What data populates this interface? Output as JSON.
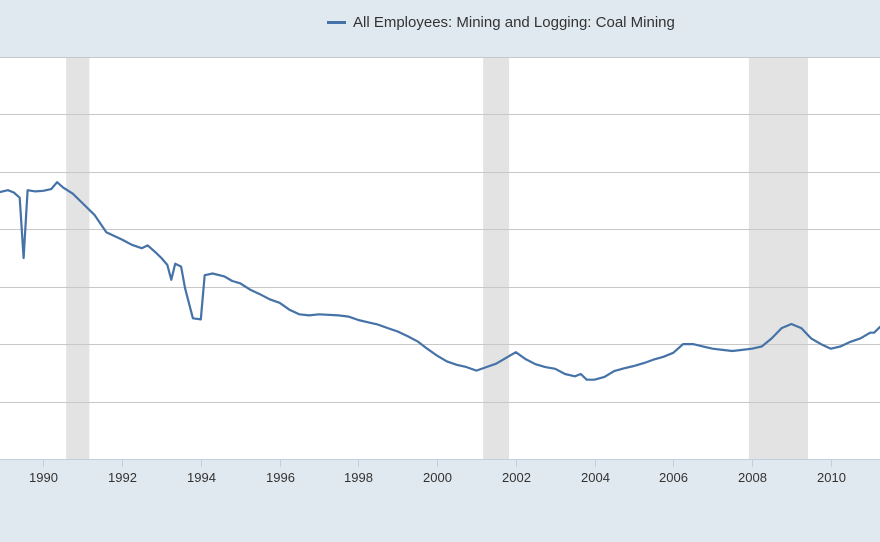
{
  "chart_data": {
    "type": "line",
    "title": "",
    "xlabel": "",
    "ylabel": "",
    "grid": true,
    "legend_position": "top",
    "colors": {
      "line": "#4572a7",
      "background": "#e1e9f0",
      "plot_background": "#ffffff",
      "recession": "#e3e3e3",
      "grid": "#c8c8c8"
    },
    "xlim": [
      1988.9,
      2011.25
    ],
    "ylim": [
      0,
      7
    ],
    "y_gridlines": [
      1,
      2,
      3,
      4,
      5,
      6,
      7
    ],
    "x_ticks": [
      {
        "value": 1990,
        "label": "1990"
      },
      {
        "value": 1992,
        "label": "1992"
      },
      {
        "value": 1994,
        "label": "1994"
      },
      {
        "value": 1996,
        "label": "1996"
      },
      {
        "value": 1998,
        "label": "1998"
      },
      {
        "value": 2000,
        "label": "2000"
      },
      {
        "value": 2002,
        "label": "2002"
      },
      {
        "value": 2004,
        "label": "2004"
      },
      {
        "value": 2006,
        "label": "2006"
      },
      {
        "value": 2008,
        "label": "2008"
      },
      {
        "value": 2010,
        "label": "2010"
      }
    ],
    "recessions": [
      {
        "start": 1990.58,
        "end": 1991.17
      },
      {
        "start": 2001.17,
        "end": 2001.83
      },
      {
        "start": 2007.92,
        "end": 2009.42
      }
    ],
    "series": [
      {
        "name": "All Employees: Mining and Logging: Coal Mining",
        "points": [
          [
            1988.9,
            4.65
          ],
          [
            1989.1,
            4.68
          ],
          [
            1989.25,
            4.64
          ],
          [
            1989.4,
            4.55
          ],
          [
            1989.5,
            3.5
          ],
          [
            1989.6,
            4.68
          ],
          [
            1989.8,
            4.66
          ],
          [
            1990.0,
            4.67
          ],
          [
            1990.2,
            4.7
          ],
          [
            1990.35,
            4.82
          ],
          [
            1990.5,
            4.73
          ],
          [
            1990.75,
            4.62
          ],
          [
            1991.0,
            4.45
          ],
          [
            1991.3,
            4.25
          ],
          [
            1991.6,
            3.95
          ],
          [
            1992.0,
            3.82
          ],
          [
            1992.25,
            3.73
          ],
          [
            1992.5,
            3.67
          ],
          [
            1992.65,
            3.72
          ],
          [
            1992.85,
            3.6
          ],
          [
            1993.0,
            3.5
          ],
          [
            1993.15,
            3.38
          ],
          [
            1993.25,
            3.12
          ],
          [
            1993.35,
            3.4
          ],
          [
            1993.5,
            3.35
          ],
          [
            1993.6,
            2.97
          ],
          [
            1993.8,
            2.45
          ],
          [
            1994.0,
            2.43
          ],
          [
            1994.1,
            3.2
          ],
          [
            1994.3,
            3.23
          ],
          [
            1994.6,
            3.18
          ],
          [
            1994.8,
            3.1
          ],
          [
            1995.0,
            3.06
          ],
          [
            1995.25,
            2.95
          ],
          [
            1995.5,
            2.87
          ],
          [
            1995.75,
            2.78
          ],
          [
            1996.0,
            2.72
          ],
          [
            1996.25,
            2.6
          ],
          [
            1996.5,
            2.52
          ],
          [
            1996.75,
            2.5
          ],
          [
            1997.0,
            2.52
          ],
          [
            1997.5,
            2.5
          ],
          [
            1997.75,
            2.48
          ],
          [
            1998.0,
            2.42
          ],
          [
            1998.25,
            2.38
          ],
          [
            1998.5,
            2.34
          ],
          [
            1998.75,
            2.28
          ],
          [
            1999.0,
            2.22
          ],
          [
            1999.25,
            2.14
          ],
          [
            1999.5,
            2.05
          ],
          [
            1999.75,
            1.92
          ],
          [
            2000.0,
            1.8
          ],
          [
            2000.25,
            1.7
          ],
          [
            2000.5,
            1.64
          ],
          [
            2000.75,
            1.6
          ],
          [
            2001.0,
            1.54
          ],
          [
            2001.25,
            1.6
          ],
          [
            2001.5,
            1.66
          ],
          [
            2001.75,
            1.76
          ],
          [
            2002.0,
            1.86
          ],
          [
            2002.25,
            1.74
          ],
          [
            2002.5,
            1.65
          ],
          [
            2002.75,
            1.6
          ],
          [
            2003.0,
            1.57
          ],
          [
            2003.25,
            1.48
          ],
          [
            2003.5,
            1.44
          ],
          [
            2003.65,
            1.48
          ],
          [
            2003.8,
            1.38
          ],
          [
            2004.0,
            1.38
          ],
          [
            2004.25,
            1.43
          ],
          [
            2004.5,
            1.53
          ],
          [
            2004.75,
            1.58
          ],
          [
            2005.0,
            1.62
          ],
          [
            2005.25,
            1.67
          ],
          [
            2005.5,
            1.73
          ],
          [
            2005.75,
            1.78
          ],
          [
            2006.0,
            1.85
          ],
          [
            2006.25,
            2.0
          ],
          [
            2006.5,
            2.0
          ],
          [
            2006.75,
            1.96
          ],
          [
            2007.0,
            1.92
          ],
          [
            2007.25,
            1.9
          ],
          [
            2007.5,
            1.88
          ],
          [
            2007.75,
            1.9
          ],
          [
            2008.0,
            1.92
          ],
          [
            2008.25,
            1.96
          ],
          [
            2008.5,
            2.1
          ],
          [
            2008.75,
            2.28
          ],
          [
            2009.0,
            2.35
          ],
          [
            2009.25,
            2.28
          ],
          [
            2009.5,
            2.1
          ],
          [
            2009.75,
            2.0
          ],
          [
            2010.0,
            1.92
          ],
          [
            2010.25,
            1.96
          ],
          [
            2010.5,
            2.04
          ],
          [
            2010.75,
            2.1
          ],
          [
            2011.0,
            2.2
          ],
          [
            2011.1,
            2.2
          ],
          [
            2011.25,
            2.3
          ]
        ]
      }
    ]
  }
}
